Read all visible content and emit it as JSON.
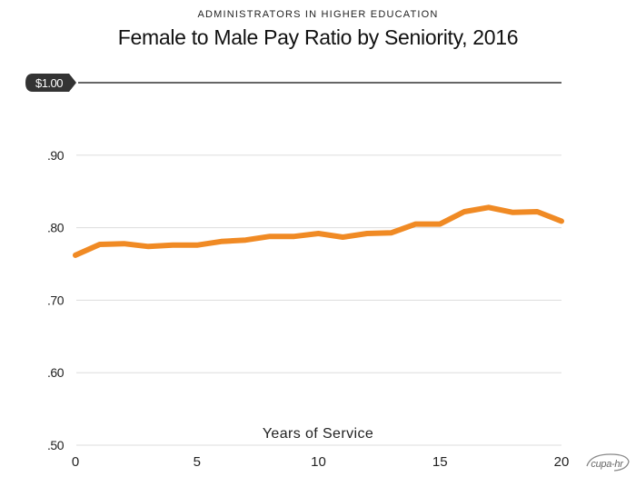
{
  "chart_data": {
    "type": "line",
    "subtitle": "ADMINISTRATORS IN HIGHER EDUCATION",
    "title": "Female to Male Pay Ratio by Seniority, 2016",
    "xlabel": "Years of Service",
    "ylabel": "",
    "xlim": [
      0,
      20
    ],
    "ylim": [
      0.5,
      1.0
    ],
    "grid": true,
    "x_ticks": [
      0,
      5,
      10,
      15,
      20
    ],
    "x_tick_labels": [
      "0",
      "5",
      "10",
      "15",
      "20"
    ],
    "y_ticks": [
      0.5,
      0.6,
      0.7,
      0.8,
      0.9,
      1.0
    ],
    "y_tick_labels": [
      ".50",
      ".60",
      ".70",
      ".80",
      ".90",
      "$1.00"
    ],
    "series": [
      {
        "name": "Female to Male Pay Ratio",
        "color": "#f08a24",
        "x": [
          0,
          1,
          2,
          3,
          4,
          5,
          6,
          7,
          8,
          9,
          10,
          11,
          12,
          13,
          14,
          15,
          16,
          17,
          18,
          19,
          20
        ],
        "values": [
          0.762,
          0.777,
          0.778,
          0.774,
          0.776,
          0.776,
          0.781,
          0.783,
          0.788,
          0.788,
          0.792,
          0.787,
          0.792,
          0.793,
          0.805,
          0.805,
          0.822,
          0.828,
          0.821,
          0.822,
          0.809
        ]
      }
    ]
  },
  "logo": {
    "text": "cupa-hr"
  },
  "colors": {
    "line": "#f08a24",
    "grid": "#dddddd",
    "parity_line": "#666666",
    "badge": "#333333"
  }
}
